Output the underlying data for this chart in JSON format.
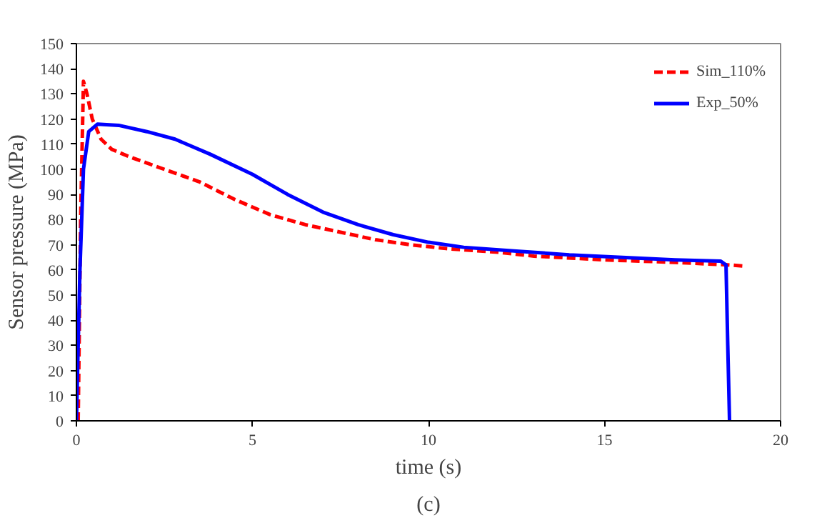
{
  "chart_data": {
    "type": "line",
    "xlabel": "time (s)",
    "ylabel": "Sensor pressure (MPa)",
    "xlim": [
      0,
      20
    ],
    "xticks": [
      0,
      5,
      10,
      15,
      20
    ],
    "ylim": [
      0,
      150
    ],
    "yticks": [
      0,
      10,
      20,
      30,
      40,
      50,
      60,
      70,
      80,
      90,
      100,
      110,
      120,
      130,
      140,
      150
    ],
    "grid": false,
    "legend": "top right",
    "annotations": [
      "(c)"
    ],
    "series": [
      {
        "name": "Sim_110%",
        "color": "#ff0000",
        "line_style": "dashed",
        "x": [
          0.05,
          0.12,
          0.2,
          0.3,
          0.45,
          0.7,
          1.0,
          1.5,
          2.5,
          3.5,
          4.5,
          5.5,
          6.5,
          7.5,
          8.5,
          9.5,
          10.5,
          12,
          13,
          15,
          17,
          18.5,
          19
        ],
        "values": [
          0,
          80,
          135,
          130,
          120,
          112,
          108,
          105,
          100,
          95,
          88,
          82,
          78,
          75,
          72,
          70,
          68.5,
          67,
          65.5,
          64,
          63,
          62,
          61.5
        ]
      },
      {
        "name": "Exp_50%",
        "color": "#0000ff",
        "line_style": "solid",
        "x": [
          0,
          0.1,
          0.2,
          0.35,
          0.6,
          1.2,
          2,
          2.8,
          3.8,
          5,
          6,
          7,
          8,
          9,
          10,
          11,
          12.5,
          14,
          15.5,
          17,
          18.3,
          18.45,
          18.5,
          18.55
        ],
        "values": [
          0,
          60,
          100,
          115,
          118,
          117.5,
          115,
          112,
          106,
          98,
          90,
          83,
          78,
          74,
          71,
          69,
          67.5,
          66,
          65,
          64,
          63.5,
          62,
          30,
          0
        ]
      }
    ]
  }
}
